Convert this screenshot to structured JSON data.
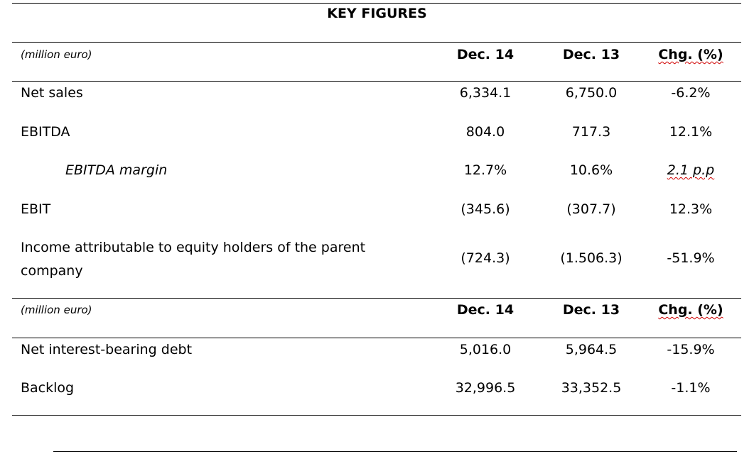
{
  "title": "KEY FIGURES",
  "section1": {
    "units": "(million euro)",
    "col_headers": [
      "Dec. 14",
      "Dec. 13",
      "Chg. (%)"
    ],
    "rows": [
      {
        "label": "Net sales",
        "dec14": "6,334.1",
        "dec13": "6,750.0",
        "chg": "-6.2%"
      },
      {
        "label": "EBITDA",
        "dec14": "804.0",
        "dec13": "717.3",
        "chg": "12.1%"
      },
      {
        "label": "EBITDA margin",
        "dec14": "12.7%",
        "dec13": "10.6%",
        "chg": "2.1 p.p"
      },
      {
        "label": "EBIT",
        "dec14": "(345.6)",
        "dec13": "(307.7)",
        "chg": "12.3%"
      },
      {
        "label_line1": "Income attributable to equity holders of the parent",
        "label_line2": "company",
        "dec14": "(724.3)",
        "dec13": "(1.506.3)",
        "chg": "-51.9%"
      }
    ]
  },
  "section2": {
    "units": "(million euro)",
    "col_headers": [
      "Dec. 14",
      "Dec. 13",
      "Chg. (%)"
    ],
    "rows": [
      {
        "label": "Net interest-bearing debt",
        "dec14": "5,016.0",
        "dec13": "5,964.5",
        "chg": "-15.9%"
      },
      {
        "label": "Backlog",
        "dec14": "32,996.5",
        "dec13": "33,352.5",
        "chg": "-1.1%"
      }
    ]
  }
}
